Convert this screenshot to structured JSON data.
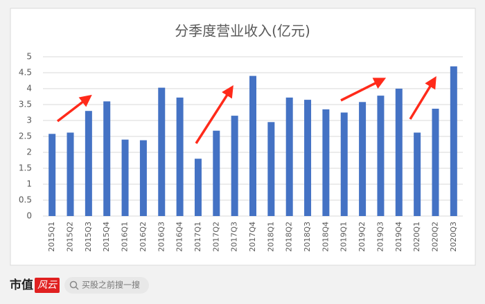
{
  "chart_data": {
    "type": "bar",
    "title": "分季度营业收入(亿元)",
    "categories": [
      "2015Q1",
      "2015Q2",
      "2015Q3",
      "2015Q4",
      "2016Q1",
      "2016Q2",
      "2016Q3",
      "2016Q4",
      "2017Q1",
      "2017Q2",
      "2017Q3",
      "2017Q4",
      "2018Q1",
      "2018Q2",
      "2018Q3",
      "2018Q4",
      "2019Q1",
      "2019Q2",
      "2019Q3",
      "2019Q4",
      "2020Q1",
      "2020Q2",
      "2020Q3"
    ],
    "values": [
      2.58,
      2.62,
      3.3,
      3.6,
      2.4,
      2.38,
      4.03,
      3.72,
      1.8,
      2.68,
      3.15,
      4.4,
      2.95,
      3.72,
      3.65,
      3.35,
      3.25,
      3.58,
      3.78,
      4.0,
      2.62,
      3.37,
      4.7
    ],
    "color": "#4472c4",
    "ylim": [
      0,
      5
    ],
    "yticks": [
      0,
      {
        "value": 0.5,
        "label": "0.5"
      },
      1,
      {
        "value": 1.5,
        "label": "1.5"
      },
      2,
      {
        "value": 2.5,
        "label": "2.5"
      },
      3,
      {
        "value": 3.5,
        "label": "3.5"
      },
      4,
      {
        "value": 4.5,
        "label": "4.5"
      },
      5
    ],
    "grid": true
  },
  "footer": {
    "brand": "市值",
    "brand_accent": "风云",
    "search": "买股之前搜一搜"
  }
}
